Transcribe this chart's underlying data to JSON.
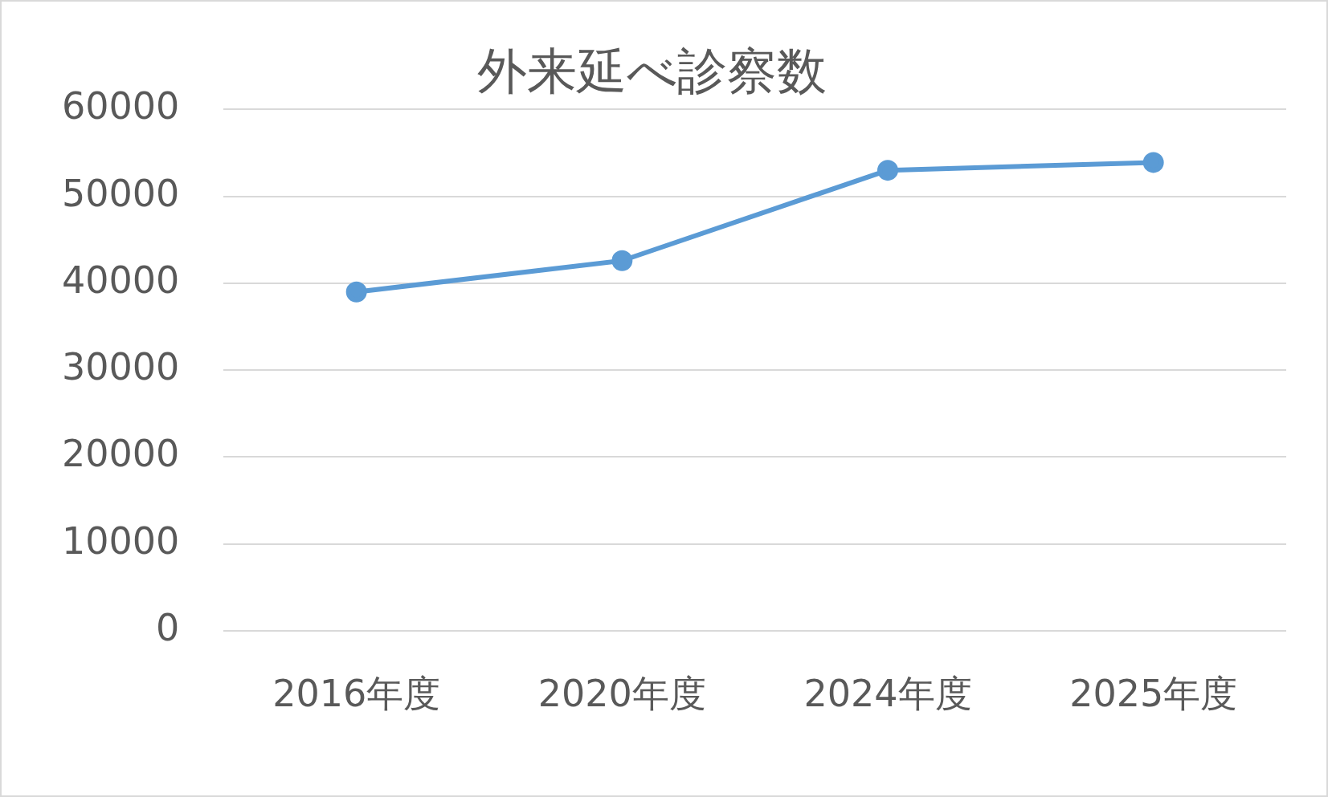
{
  "chart_data": {
    "type": "line",
    "title": "外来延べ診察数",
    "categories": [
      "2016年度",
      "2020年度",
      "2024年度",
      "2025年度"
    ],
    "series": [
      {
        "color": "#5b9bd5",
        "values": [
          39000,
          42600,
          53000,
          53900
        ]
      }
    ],
    "ylim": [
      0,
      60000
    ],
    "yticks": [
      0,
      10000,
      20000,
      30000,
      40000,
      50000,
      60000
    ],
    "grid": "y",
    "legend": false,
    "marker": "circle",
    "line_style": "solid"
  }
}
